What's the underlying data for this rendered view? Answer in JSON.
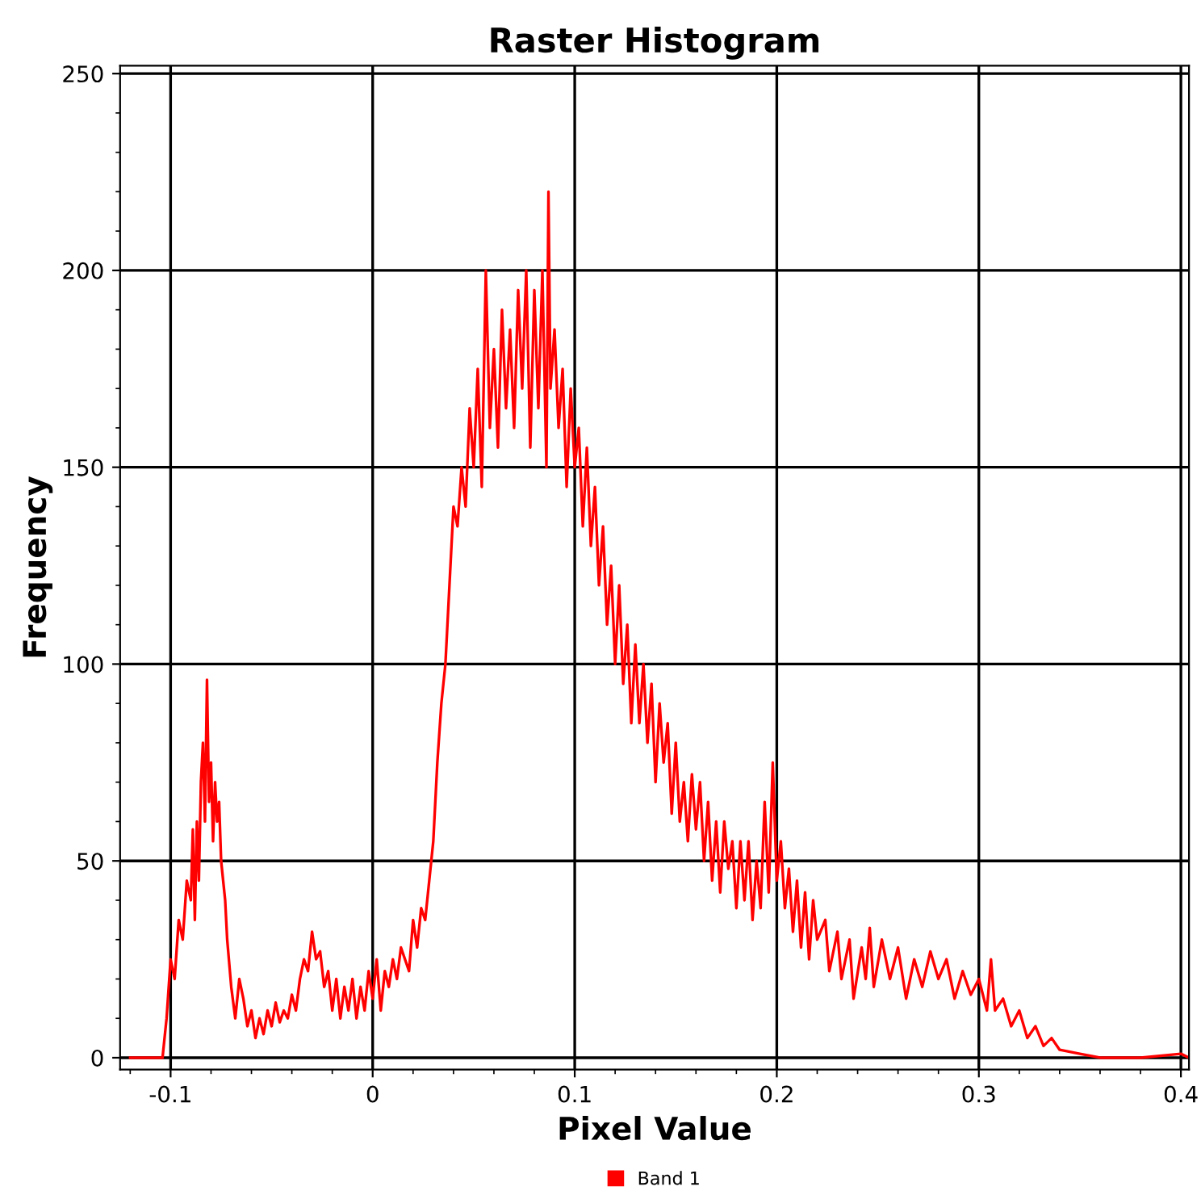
{
  "chart_data": {
    "type": "line",
    "title": "Raster Histogram",
    "xlabel": "Pixel Value",
    "ylabel": "Frequency",
    "xlim": [
      -0.125,
      0.404
    ],
    "ylim": [
      -3,
      252
    ],
    "xticks": [
      {
        "value": -0.1,
        "label": "-0.1"
      },
      0,
      0.1,
      0.2,
      0.3,
      0.4
    ],
    "yticks": [
      0,
      50,
      100,
      150,
      200,
      250
    ],
    "grid": true,
    "legend": "bottom",
    "marker": "none",
    "line_style": "solid",
    "series": [
      {
        "name": "Band 1",
        "color": "#ff0000",
        "x": [
          -0.12,
          -0.104,
          -0.102,
          -0.1,
          -0.098,
          -0.096,
          -0.094,
          -0.092,
          -0.09,
          -0.089,
          -0.088,
          -0.087,
          -0.086,
          -0.085,
          -0.084,
          -0.083,
          -0.082,
          -0.081,
          -0.08,
          -0.079,
          -0.078,
          -0.077,
          -0.076,
          -0.075,
          -0.073,
          -0.072,
          -0.07,
          -0.068,
          -0.066,
          -0.064,
          -0.062,
          -0.06,
          -0.058,
          -0.056,
          -0.054,
          -0.052,
          -0.05,
          -0.048,
          -0.046,
          -0.044,
          -0.042,
          -0.04,
          -0.038,
          -0.036,
          -0.034,
          -0.032,
          -0.03,
          -0.028,
          -0.026,
          -0.024,
          -0.022,
          -0.02,
          -0.018,
          -0.016,
          -0.014,
          -0.012,
          -0.01,
          -0.008,
          -0.006,
          -0.004,
          -0.002,
          0.0,
          0.002,
          0.004,
          0.006,
          0.008,
          0.01,
          0.012,
          0.014,
          0.016,
          0.018,
          0.02,
          0.022,
          0.024,
          0.026,
          0.028,
          0.03,
          0.032,
          0.034,
          0.036,
          0.038,
          0.04,
          0.042,
          0.044,
          0.046,
          0.048,
          0.05,
          0.052,
          0.054,
          0.056,
          0.058,
          0.06,
          0.062,
          0.064,
          0.066,
          0.068,
          0.07,
          0.072,
          0.074,
          0.076,
          0.078,
          0.08,
          0.082,
          0.084,
          0.086,
          0.087,
          0.088,
          0.09,
          0.092,
          0.094,
          0.096,
          0.098,
          0.1,
          0.102,
          0.104,
          0.106,
          0.108,
          0.11,
          0.112,
          0.114,
          0.116,
          0.118,
          0.12,
          0.122,
          0.124,
          0.126,
          0.128,
          0.13,
          0.132,
          0.134,
          0.136,
          0.138,
          0.14,
          0.142,
          0.144,
          0.146,
          0.148,
          0.15,
          0.152,
          0.154,
          0.156,
          0.158,
          0.16,
          0.162,
          0.164,
          0.166,
          0.168,
          0.17,
          0.172,
          0.174,
          0.176,
          0.178,
          0.18,
          0.182,
          0.184,
          0.186,
          0.188,
          0.19,
          0.192,
          0.194,
          0.196,
          0.198,
          0.2,
          0.202,
          0.204,
          0.206,
          0.208,
          0.21,
          0.212,
          0.214,
          0.216,
          0.218,
          0.22,
          0.224,
          0.226,
          0.23,
          0.232,
          0.236,
          0.238,
          0.242,
          0.244,
          0.246,
          0.248,
          0.252,
          0.256,
          0.26,
          0.264,
          0.268,
          0.272,
          0.276,
          0.28,
          0.284,
          0.288,
          0.292,
          0.296,
          0.3,
          0.304,
          0.306,
          0.308,
          0.312,
          0.316,
          0.32,
          0.324,
          0.328,
          0.332,
          0.336,
          0.34,
          0.35,
          0.36,
          0.38,
          0.4,
          0.404
        ],
        "values": [
          0,
          0,
          10,
          25,
          20,
          35,
          30,
          45,
          40,
          58,
          35,
          60,
          45,
          70,
          80,
          60,
          96,
          65,
          75,
          55,
          70,
          60,
          65,
          50,
          40,
          30,
          18,
          10,
          20,
          15,
          8,
          12,
          5,
          10,
          6,
          12,
          8,
          14,
          9,
          12,
          10,
          16,
          12,
          20,
          25,
          22,
          32,
          25,
          27,
          18,
          22,
          12,
          20,
          10,
          18,
          12,
          20,
          10,
          18,
          12,
          22,
          15,
          25,
          12,
          22,
          18,
          25,
          20,
          28,
          25,
          22,
          35,
          28,
          38,
          35,
          45,
          55,
          75,
          90,
          100,
          120,
          140,
          135,
          150,
          140,
          165,
          150,
          175,
          145,
          200,
          160,
          180,
          155,
          190,
          165,
          185,
          160,
          195,
          170,
          200,
          155,
          195,
          165,
          200,
          150,
          220,
          170,
          185,
          160,
          175,
          145,
          170,
          150,
          160,
          135,
          155,
          130,
          145,
          120,
          135,
          110,
          125,
          100,
          120,
          95,
          110,
          85,
          105,
          85,
          100,
          80,
          95,
          70,
          90,
          75,
          85,
          62,
          80,
          60,
          70,
          55,
          72,
          58,
          70,
          50,
          65,
          45,
          60,
          42,
          60,
          48,
          55,
          38,
          55,
          40,
          55,
          35,
          50,
          38,
          65,
          42,
          75,
          45,
          55,
          38,
          48,
          32,
          45,
          28,
          42,
          25,
          40,
          30,
          35,
          22,
          32,
          20,
          30,
          15,
          28,
          20,
          33,
          18,
          30,
          20,
          28,
          15,
          25,
          18,
          27,
          20,
          25,
          15,
          22,
          16,
          20,
          12,
          25,
          12,
          15,
          8,
          12,
          5,
          8,
          3,
          5,
          2,
          1,
          0,
          0,
          1,
          0
        ]
      }
    ]
  }
}
